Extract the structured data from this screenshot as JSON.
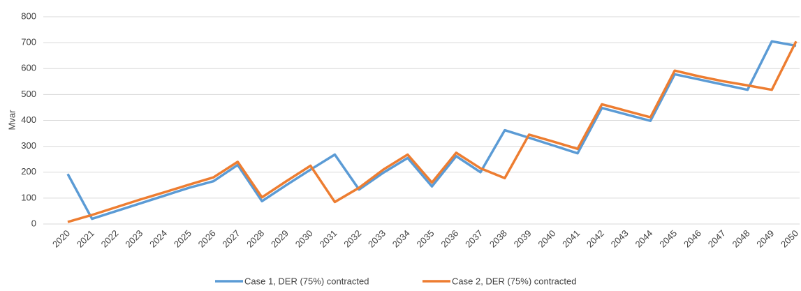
{
  "chart_data": {
    "type": "line",
    "y_label": "Mvar",
    "categories": [
      "2020",
      "2021",
      "2022",
      "2023",
      "2024",
      "2025",
      "2026",
      "2027",
      "2028",
      "2029",
      "2030",
      "2031",
      "2032",
      "2033",
      "2034",
      "2035",
      "2036",
      "2037",
      "2038",
      "2039",
      "2040",
      "2041",
      "2042",
      "2043",
      "2044",
      "2045",
      "2046",
      "2047",
      "2048",
      "2049",
      "2050"
    ],
    "series": [
      {
        "name": "Case 1, DER (75%) contracted",
        "color": "#5b9bd5",
        "values": [
          193,
          20,
          50,
          80,
          110,
          140,
          165,
          228,
          88,
          150,
          210,
          268,
          133,
          198,
          255,
          145,
          262,
          200,
          362,
          333,
          303,
          273,
          448,
          423,
          398,
          578,
          558,
          538,
          518,
          705,
          688
        ]
      },
      {
        "name": "Case 2, DER (75%) contracted",
        "color": "#ed7d31",
        "values": [
          8,
          35,
          65,
          95,
          123,
          152,
          180,
          240,
          103,
          165,
          225,
          85,
          140,
          210,
          268,
          160,
          275,
          215,
          177,
          345,
          318,
          290,
          462,
          437,
          412,
          592,
          570,
          551,
          535,
          518,
          705
        ]
      }
    ],
    "ylim": [
      0,
      800
    ],
    "yticks": [
      0,
      100,
      200,
      300,
      400,
      500,
      600,
      700,
      800
    ],
    "grid": true,
    "legend": "bottom"
  }
}
